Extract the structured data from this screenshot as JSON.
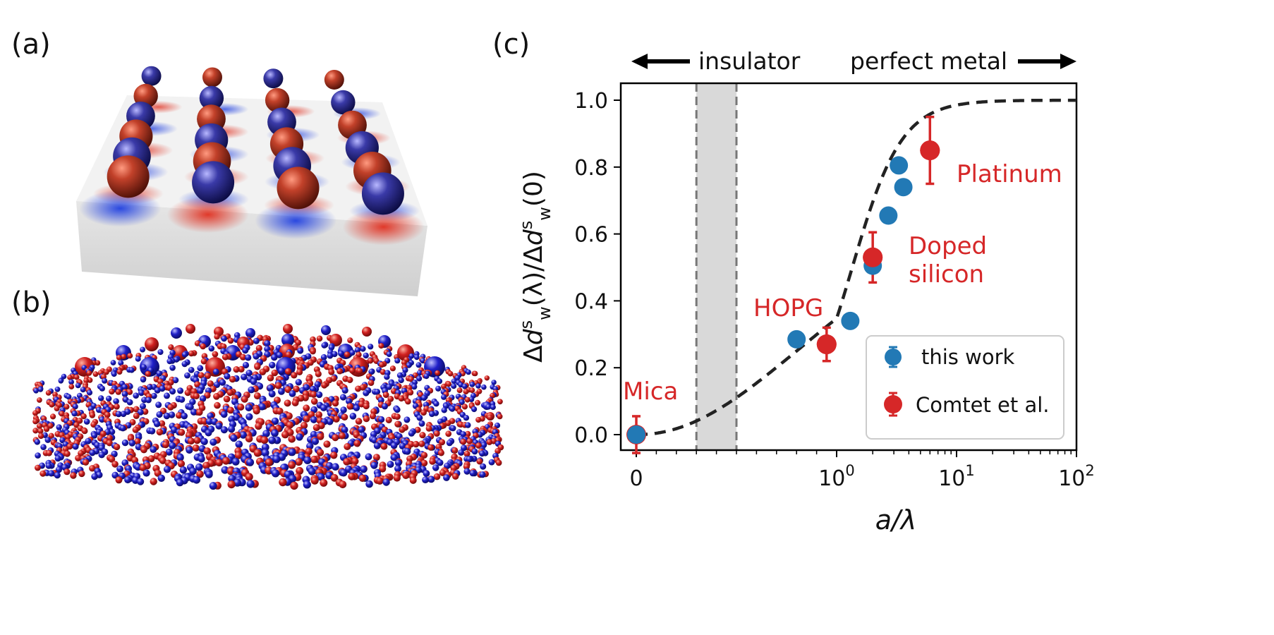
{
  "panels": {
    "a": {
      "label": "(a)"
    },
    "b": {
      "label": "(b)"
    },
    "c": {
      "label": "(c)"
    }
  },
  "colors": {
    "this_work": "#2279b5",
    "comtet": "#d62728",
    "fit_line": "#222222",
    "band": "#d9d9d9",
    "red_sphere": "#b0301c",
    "blue_sphere": "#2a2a9a"
  },
  "arrows": {
    "left_label": "insulator",
    "right_label": "perfect metal"
  },
  "chart_data": {
    "type": "scatter",
    "title": "",
    "xlabel": "a/λ",
    "ylabel": "Δd_w^s(λ)/Δd_w^s(0)",
    "xscale": "symlog",
    "xlim": [
      0,
      100
    ],
    "ylim": [
      -0.05,
      1.05
    ],
    "x_ticks": [
      "0",
      "10^0",
      "10^1",
      "10^2"
    ],
    "y_ticks": [
      "0.0",
      "0.2",
      "0.4",
      "0.6",
      "0.8",
      "1.0"
    ],
    "grid": false,
    "legend_position": "lower-right",
    "insulator_band": [
      0.3,
      0.5
    ],
    "series": [
      {
        "name": "this work",
        "color": "#2279b5",
        "points": [
          {
            "x": 0,
            "y": 0.0
          },
          {
            "x": 0.8,
            "y": 0.285
          },
          {
            "x": 1.3,
            "y": 0.34
          },
          {
            "x": 2.0,
            "y": 0.505
          },
          {
            "x": 2.7,
            "y": 0.655
          },
          {
            "x": 3.3,
            "y": 0.805
          },
          {
            "x": 3.6,
            "y": 0.74
          }
        ]
      },
      {
        "name": "Comtet et al.",
        "color": "#d62728",
        "points": [
          {
            "x": 0,
            "y": 0.0,
            "yerr": 0.055,
            "label": "Mica"
          },
          {
            "x": 0.95,
            "y": 0.27,
            "yerr": 0.05,
            "label": "HOPG"
          },
          {
            "x": 2.0,
            "y": 0.53,
            "yerr": 0.075,
            "label": "Doped silicon"
          },
          {
            "x": 6.0,
            "y": 0.85,
            "yerr": 0.1,
            "label": "Platinum"
          }
        ]
      }
    ],
    "fit": {
      "style": "dashed",
      "description": "sigmoid"
    }
  }
}
